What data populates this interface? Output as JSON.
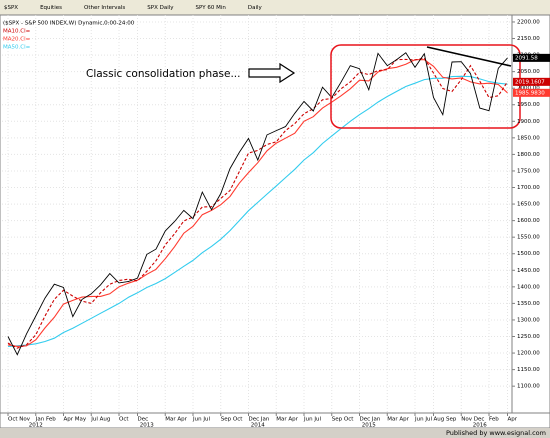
{
  "toolbar": [
    "$SPX",
    "Equities",
    "Other Intervals",
    "SPX Daily",
    "SPY 60 Min",
    "Daily"
  ],
  "footer": "Published by www.esignal.com",
  "chart_data": {
    "type": "line",
    "title": "($SPX - S&P 500 INDEX,W) Dynamic,0:00-24:00",
    "annotation": "Classic consolidation phase...",
    "x": [
      "2011-10",
      "2011-11",
      "2011-12",
      "2012-01",
      "2012-02",
      "2012-03",
      "2012-04",
      "2012-05",
      "2012-06",
      "2012-07",
      "2012-08",
      "2012-09",
      "2012-10",
      "2012-11",
      "2012-12",
      "2013-01",
      "2013-02",
      "2013-03",
      "2013-04",
      "2013-05",
      "2013-06",
      "2013-07",
      "2013-08",
      "2013-09",
      "2013-10",
      "2013-11",
      "2013-12",
      "2014-01",
      "2014-02",
      "2014-03",
      "2014-04",
      "2014-05",
      "2014-06",
      "2014-07",
      "2014-08",
      "2014-09",
      "2014-10",
      "2014-11",
      "2014-12",
      "2015-01",
      "2015-02",
      "2015-03",
      "2015-04",
      "2015-05",
      "2015-06",
      "2015-07",
      "2015-08",
      "2015-09",
      "2015-10",
      "2015-11",
      "2015-12",
      "2016-01",
      "2016-02",
      "2016-03",
      "2016-04"
    ],
    "series": [
      {
        "name": "$SPX",
        "color": "#000000",
        "dash": false,
        "last_value_label": "2091.58",
        "values": [
          1250,
          1195,
          1258,
          1312,
          1366,
          1408,
          1398,
          1310,
          1362,
          1379,
          1406,
          1440,
          1412,
          1416,
          1426,
          1498,
          1514,
          1569,
          1597,
          1631,
          1606,
          1686,
          1633,
          1682,
          1757,
          1806,
          1848,
          1783,
          1859,
          1872,
          1884,
          1924,
          1960,
          1931,
          2003,
          1972,
          2018,
          2068,
          2059,
          1995,
          2105,
          2068,
          2086,
          2107,
          2063,
          2104,
          1972,
          1920,
          2079,
          2080,
          2044,
          1940,
          1932,
          2060,
          2091.58
        ]
      },
      {
        "name": "MA10.Cl=",
        "color": "#cc0000",
        "dash": true,
        "last_value_label": "2019.1607",
        "values": [
          1230,
          1215,
          1225,
          1255,
          1312,
          1362,
          1390,
          1372,
          1357,
          1350,
          1382,
          1408,
          1419,
          1423,
          1418,
          1447,
          1479,
          1527,
          1560,
          1599,
          1611,
          1641,
          1642,
          1667,
          1691,
          1748,
          1804,
          1812,
          1830,
          1838,
          1872,
          1893,
          1923,
          1938,
          1965,
          1969,
          1998,
          2019,
          2048,
          2041,
          2053,
          2056,
          2086,
          2087,
          2085,
          2091,
          2046,
          1999,
          1990,
          2026,
          2068,
          2021,
          1972,
          1977,
          2019.1607
        ]
      },
      {
        "name": "MA20.Cl=",
        "color": "#ff3b30",
        "dash": false,
        "last_value_label": "1985.9830",
        "values": [
          1225,
          1220,
          1222,
          1240,
          1276,
          1308,
          1348,
          1359,
          1369,
          1371,
          1371,
          1379,
          1400,
          1411,
          1420,
          1438,
          1453,
          1485,
          1521,
          1562,
          1583,
          1618,
          1631,
          1648,
          1673,
          1713,
          1745,
          1775,
          1811,
          1834,
          1849,
          1864,
          1900,
          1914,
          1940,
          1958,
          1977,
          1998,
          2024,
          2022,
          2049,
          2059,
          2063,
          2072,
          2086,
          2086,
          2066,
          2033,
          2028,
          2031,
          2019,
          2013,
          2015,
          2011,
          1985.983
        ]
      },
      {
        "name": "MA50.Cl=",
        "color": "#33ccee",
        "dash": false,
        "values": [
          1220,
          1222,
          1224,
          1228,
          1235,
          1245,
          1262,
          1275,
          1290,
          1305,
          1320,
          1335,
          1350,
          1368,
          1382,
          1398,
          1410,
          1425,
          1443,
          1462,
          1480,
          1503,
          1522,
          1544,
          1570,
          1600,
          1630,
          1655,
          1680,
          1705,
          1730,
          1755,
          1783,
          1805,
          1833,
          1856,
          1878,
          1900,
          1920,
          1938,
          1958,
          1975,
          1990,
          2005,
          2015,
          2026,
          2030,
          2030,
          2035,
          2036,
          2035,
          2028,
          2020,
          2015,
          2012
        ]
      }
    ],
    "ylim": [
      1025,
      2215
    ],
    "yticks": [
      {
        "value": 1100,
        "label": "1100.00"
      },
      {
        "value": 1150,
        "label": "1150.00"
      },
      {
        "value": 1200,
        "label": "1200.00"
      },
      {
        "value": 1250,
        "label": "1250.00"
      },
      {
        "value": 1300,
        "label": "1300.00"
      },
      {
        "value": 1350,
        "label": "1350.00"
      },
      {
        "value": 1400,
        "label": "1400.00"
      },
      {
        "value": 1450,
        "label": "1450.00"
      },
      {
        "value": 1500,
        "label": "1500.00"
      },
      {
        "value": 1550,
        "label": "1550.00"
      },
      {
        "value": 1600,
        "label": "1600.00"
      },
      {
        "value": 1650,
        "label": "1650.00"
      },
      {
        "value": 1700,
        "label": "1700.00"
      },
      {
        "value": 1750,
        "label": "1750.00"
      },
      {
        "value": 1800,
        "label": "1800.00"
      },
      {
        "value": 1850,
        "label": "1850.00"
      },
      {
        "value": 1900,
        "label": "1900.00"
      },
      {
        "value": 1950,
        "label": "1950.00"
      },
      {
        "value": 2000,
        "label": "2000.00"
      },
      {
        "value": 2050,
        "label": "2050.00"
      },
      {
        "value": 2100,
        "label": "2100.00"
      },
      {
        "value": 2150,
        "label": "2150.00"
      },
      {
        "value": 2200,
        "label": "2200.00"
      }
    ],
    "xticks": [
      {
        "value": "2011-10",
        "label": "Oct Nov"
      },
      {
        "value": "2012-01",
        "label": "Jan Feb"
      },
      {
        "value": "2012-04",
        "label": "Apr May"
      },
      {
        "value": "2012-07",
        "label": "Jul Aug"
      },
      {
        "value": "2012-10",
        "label": "Oct"
      },
      {
        "value": "2012-12",
        "label": "Dec"
      },
      {
        "value": "2013-03",
        "label": "Mar Apr"
      },
      {
        "value": "2013-06",
        "label": "Jun Jul"
      },
      {
        "value": "2013-09",
        "label": "Sep Oct"
      },
      {
        "value": "2013-12",
        "label": "Dec Jan"
      },
      {
        "value": "2014-03",
        "label": "Mar Apr"
      },
      {
        "value": "2014-06",
        "label": "Jun Jul"
      },
      {
        "value": "2014-09",
        "label": "Sep Oct"
      },
      {
        "value": "2014-12",
        "label": "Dec Jan"
      },
      {
        "value": "2015-03",
        "label": "Mar Apr"
      },
      {
        "value": "2015-06",
        "label": "Jun Jul"
      },
      {
        "value": "2015-08",
        "label": "Aug Sep"
      },
      {
        "value": "2015-11",
        "label": "Nov Dec"
      },
      {
        "value": "2016-02",
        "label": "Feb"
      },
      {
        "value": "2016-04",
        "label": "Apr"
      }
    ],
    "years": [
      {
        "value": "2012-01",
        "label": "2012"
      },
      {
        "value": "2013-01",
        "label": "2013"
      },
      {
        "value": "2014-01",
        "label": "2014"
      },
      {
        "value": "2015-01",
        "label": "2015"
      },
      {
        "value": "2016-01",
        "label": "2016"
      }
    ],
    "grid": true
  }
}
